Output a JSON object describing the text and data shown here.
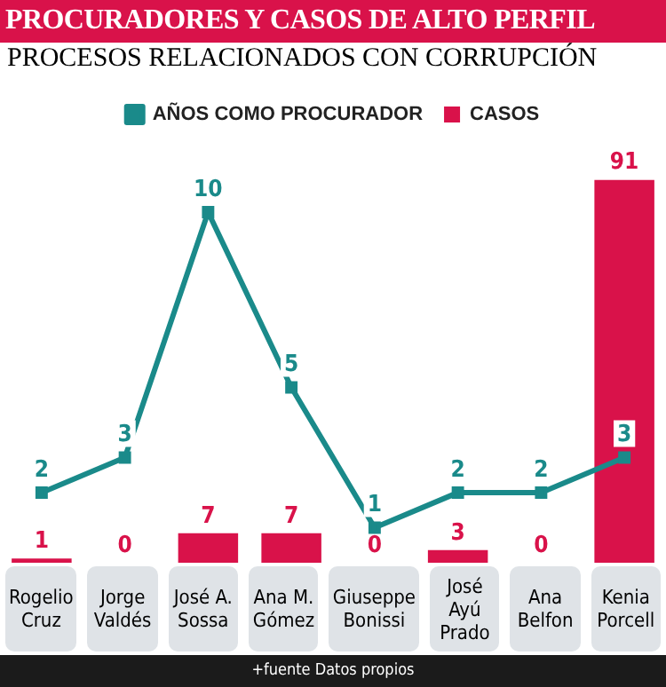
{
  "chart_data": {
    "type": "bar",
    "title": "PROCURADORES Y CASOS DE ALTO PERFIL",
    "subtitle": "PROCESOS RELACIONADOS CON CORRUPCIÓN",
    "categories": [
      "Rogelio Cruz",
      "Jorge Valdés",
      "José A. Sossa",
      "Ana M. Gómez",
      "Giuseppe Bonissi",
      "José Ayú Prado",
      "Ana Belfon",
      "Kenia Porcell"
    ],
    "series": [
      {
        "name": "AÑOS COMO PROCURADOR",
        "type": "line",
        "axis": "y2",
        "color": "#1a8a8a",
        "values": [
          2,
          3,
          10,
          5,
          1,
          2,
          2,
          3
        ]
      },
      {
        "name": "CASOS",
        "color": "#d9124a",
        "values": [
          1,
          0,
          7,
          7,
          0,
          3,
          0,
          91
        ]
      }
    ],
    "data_labels": true,
    "legend": "top",
    "marker": "square",
    "annotations": [
      "+fuente Datos propios"
    ]
  }
}
